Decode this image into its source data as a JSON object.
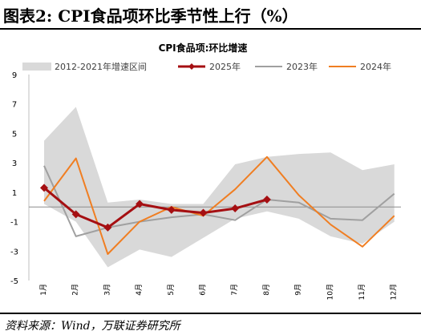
{
  "figure": {
    "title": "图表2:  CPI食品项环比季节性上行（%）",
    "source": "资料来源：Wind，万联证券研究所"
  },
  "chart_data": {
    "type": "line",
    "title": "CPI食品项:环比增速",
    "categories": [
      "1月",
      "2月",
      "3月",
      "4月",
      "5月",
      "6月",
      "7月",
      "8月",
      "9月",
      "10月",
      "11月",
      "12月"
    ],
    "ylim": [
      -5,
      9
    ],
    "yticks": [
      9,
      7,
      5,
      3,
      1,
      -1,
      -3,
      -5
    ],
    "grid": false,
    "legend_position": "top",
    "range_band": {
      "name": "2012-2021年增速区间",
      "color": "#d9d9d9",
      "upper": [
        4.5,
        6.8,
        0.3,
        0.5,
        0.2,
        0.2,
        2.9,
        3.4,
        3.6,
        3.7,
        2.5,
        2.9
      ],
      "lower": [
        0.2,
        -1.0,
        -4.1,
        -2.9,
        -3.4,
        -2.1,
        -0.8,
        -0.3,
        -0.8,
        -2.0,
        -2.5,
        -1.0
      ]
    },
    "series": [
      {
        "name": "2025年",
        "color": "#a50f12",
        "values": [
          1.3,
          -0.5,
          -1.4,
          0.2,
          -0.2,
          -0.4,
          -0.1,
          0.5,
          null,
          null,
          null,
          null
        ]
      },
      {
        "name": "2023年",
        "color": "#a0a0a0",
        "values": [
          2.8,
          -2.0,
          -1.4,
          -1.0,
          -0.7,
          -0.5,
          -0.9,
          0.5,
          0.3,
          -0.8,
          -0.9,
          0.9
        ]
      },
      {
        "name": "2024年",
        "color": "#f07e22",
        "values": [
          0.4,
          3.3,
          -3.2,
          -1.0,
          0.0,
          -0.6,
          1.2,
          3.4,
          0.8,
          -1.2,
          -2.7,
          -0.6
        ]
      }
    ]
  }
}
